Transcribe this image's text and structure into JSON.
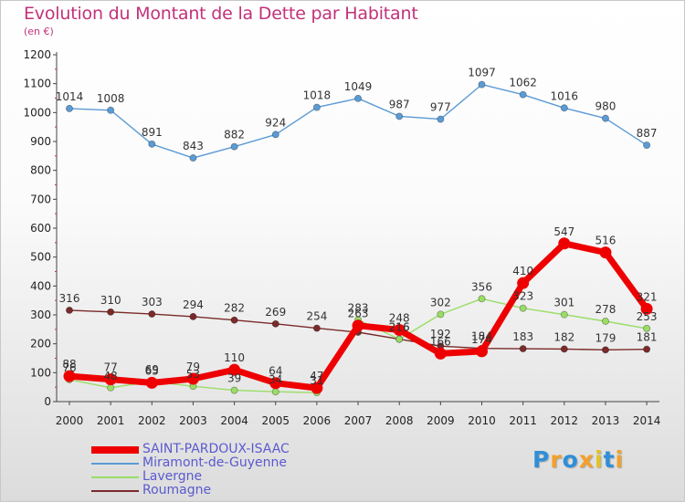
{
  "header": {
    "title": "Evolution du Montant de la Dette par Habitant",
    "subtitle": "(en €)"
  },
  "logo": {
    "text": "Proxiti",
    "letter_colors": [
      "#2f8fd8",
      "#f2a12a",
      "#2f8fd8",
      "#f2a12a",
      "#e0c32a",
      "#2f8fd8",
      "#f2a12a"
    ]
  },
  "chart_data": {
    "type": "line",
    "title": "Evolution du Montant de la Dette par Habitant",
    "subtitle": "(en €)",
    "x": [
      "2000",
      "2001",
      "2002",
      "2003",
      "2004",
      "2005",
      "2006",
      "2007",
      "2008",
      "2009",
      "2010",
      "2011",
      "2012",
      "2013",
      "2014"
    ],
    "ylim": [
      0,
      1200
    ],
    "yticks": [
      0,
      100,
      200,
      300,
      400,
      500,
      600,
      700,
      800,
      900,
      1000,
      1100,
      1200
    ],
    "grid": false,
    "legend": "bottom-left",
    "series": [
      {
        "name": "Miramont-de-Guyenne",
        "color": "#5b9bd5",
        "values": [
          1014,
          1008,
          891,
          843,
          882,
          924,
          1018,
          1049,
          987,
          977,
          1097,
          1062,
          1016,
          980,
          887
        ],
        "labels": [
          "1014",
          "1008",
          "891",
          "843",
          "882",
          "924",
          "1018",
          "1049",
          "987",
          "977",
          "1097",
          "1062",
          "1016",
          "980",
          "887"
        ]
      },
      {
        "name": "Roumagne",
        "color": "#7b2a2a",
        "values": [
          316,
          310,
          303,
          294,
          282,
          269,
          254,
          240,
          216,
          192,
          184,
          183,
          182,
          179,
          181
        ],
        "labels": [
          "316",
          "310",
          "303",
          "294",
          "282",
          "269",
          "254",
          "",
          "216",
          "192",
          "184",
          "183",
          "182",
          "179",
          "181"
        ]
      },
      {
        "name": "Lavergne",
        "color": "#99dd66",
        "values": [
          76,
          48,
          69,
          53,
          39,
          34,
          31,
          283,
          216,
          302,
          356,
          323,
          301,
          278,
          253
        ],
        "labels": [
          "76",
          "48",
          "69",
          "53",
          "39",
          "34",
          "31",
          "283",
          "216",
          "302",
          "356",
          "323",
          "301",
          "278",
          "253"
        ]
      },
      {
        "name": "SAINT-PARDOUX-ISAAC",
        "color": "#ee0000",
        "values": [
          88,
          77,
          65,
          79,
          110,
          64,
          47,
          263,
          248,
          166,
          174,
          410,
          547,
          516,
          321
        ],
        "labels": [
          "88",
          "77",
          "65",
          "79",
          "110",
          "64",
          "47",
          "263",
          "248",
          "166",
          "174",
          "410",
          "547",
          "516",
          "321"
        ]
      }
    ],
    "legend_order": [
      "SAINT-PARDOUX-ISAAC",
      "Miramont-de-Guyenne",
      "Lavergne",
      "Roumagne"
    ]
  }
}
